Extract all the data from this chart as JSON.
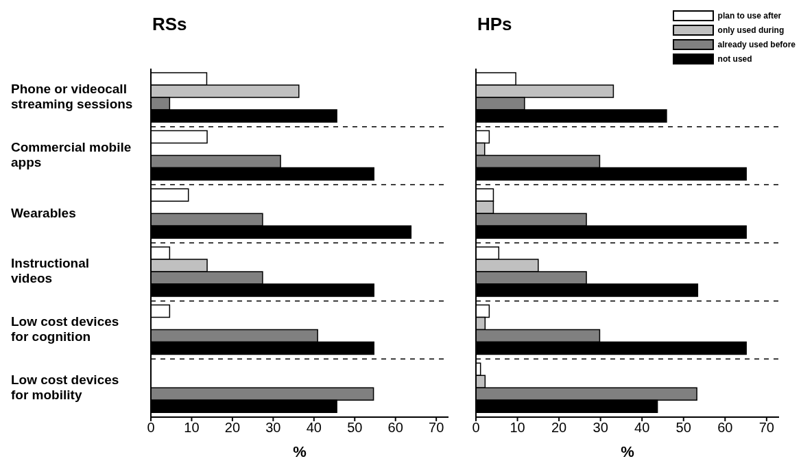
{
  "chart_data": [
    {
      "type": "bar",
      "orientation": "horizontal",
      "title": "RSs",
      "xlabel": "%",
      "categories": [
        "Phone or videocall streaming sessions",
        "Commercial mobile apps",
        "Wearables",
        "Instructional videos",
        "Low cost devices for cognition",
        "Low cost devices for mobility"
      ],
      "series": [
        {
          "color": "#ffffff",
          "values": [
            13.7,
            13.8,
            9.2,
            4.6,
            4.6,
            0
          ]
        },
        {
          "color": "#c0c0c0",
          "values": [
            36.3,
            0,
            0,
            13.8,
            0,
            0
          ]
        },
        {
          "color": "#808080",
          "values": [
            4.6,
            31.8,
            27.4,
            27.4,
            40.9,
            54.6
          ]
        },
        {
          "color": "#000000",
          "values": [
            45.6,
            54.7,
            63.8,
            54.7,
            54.7,
            45.6
          ]
        }
      ],
      "xlim": [
        0,
        73
      ],
      "xticks": [
        0,
        10,
        20,
        30,
        40,
        50,
        60,
        70
      ],
      "grid": "y",
      "legend": false
    },
    {
      "type": "bar",
      "orientation": "horizontal",
      "title": "HPs",
      "xlabel": "%",
      "categories": [
        null,
        null,
        null,
        null,
        null,
        null
      ],
      "series": [
        {
          "name": "plan to use after",
          "color": "#ffffff",
          "values": [
            9.6,
            3.2,
            4.2,
            5.5,
            3.2,
            1.1
          ]
        },
        {
          "name": "only used during",
          "color": "#c0c0c0",
          "values": [
            33.1,
            2.1,
            4.2,
            15.0,
            2.2,
            2.2
          ]
        },
        {
          "name": "already used before",
          "color": "#808080",
          "values": [
            11.7,
            29.8,
            26.6,
            26.6,
            29.8,
            53.2
          ]
        },
        {
          "name": "not used",
          "color": "#000000",
          "values": [
            45.9,
            65.1,
            65.1,
            53.4,
            65.1,
            43.7
          ]
        }
      ],
      "xlim": [
        0,
        73
      ],
      "xticks": [
        0,
        10,
        20,
        30,
        40,
        50,
        60,
        70
      ],
      "grid": "y",
      "legend": "top right",
      "tick_labels": "x"
    }
  ]
}
